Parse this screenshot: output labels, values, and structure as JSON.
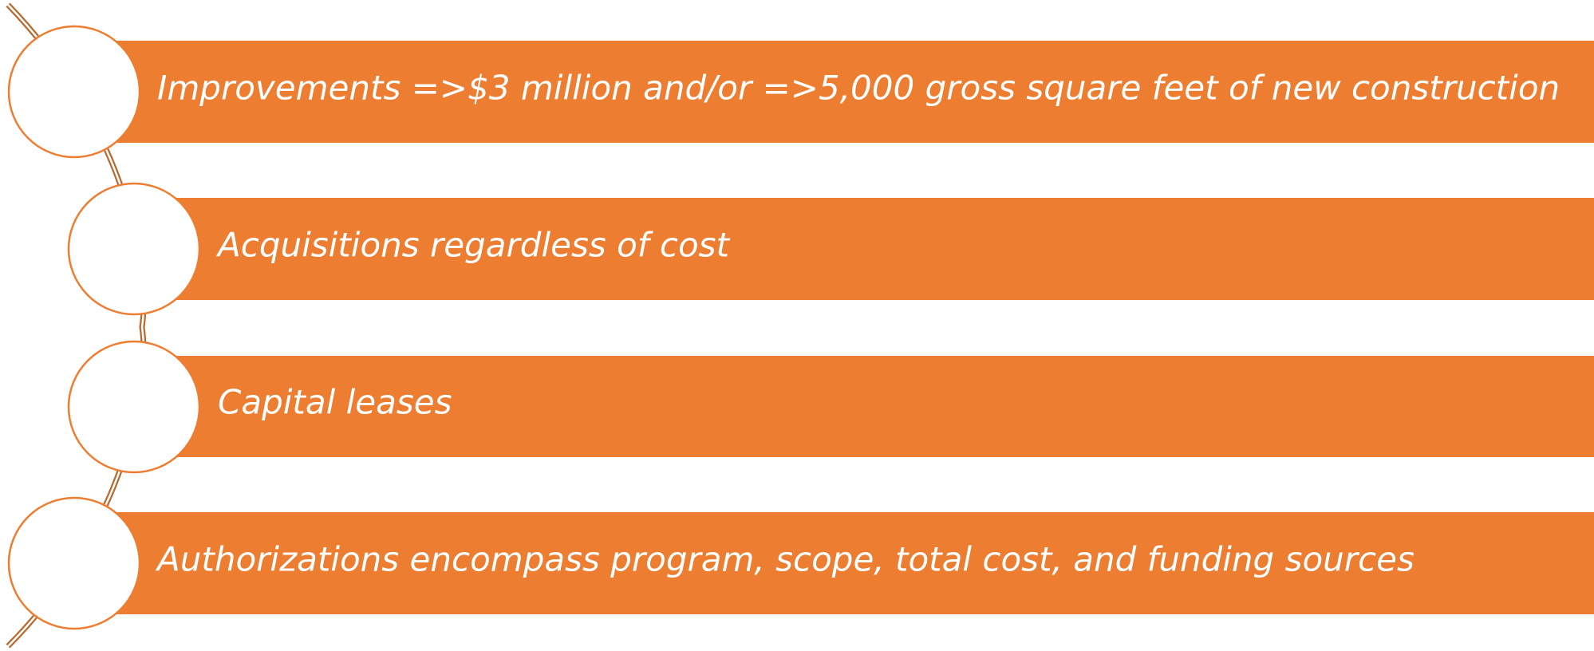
{
  "items": [
    {
      "text": "Improvements =>$3 million and/or =>5,000 gross square feet of new construction"
    },
    {
      "text": "Acquisitions regardless of cost"
    },
    {
      "text": "Capital leases"
    },
    {
      "text": "Authorizations encompass program, scope, total cost, and funding sources"
    }
  ]
}
